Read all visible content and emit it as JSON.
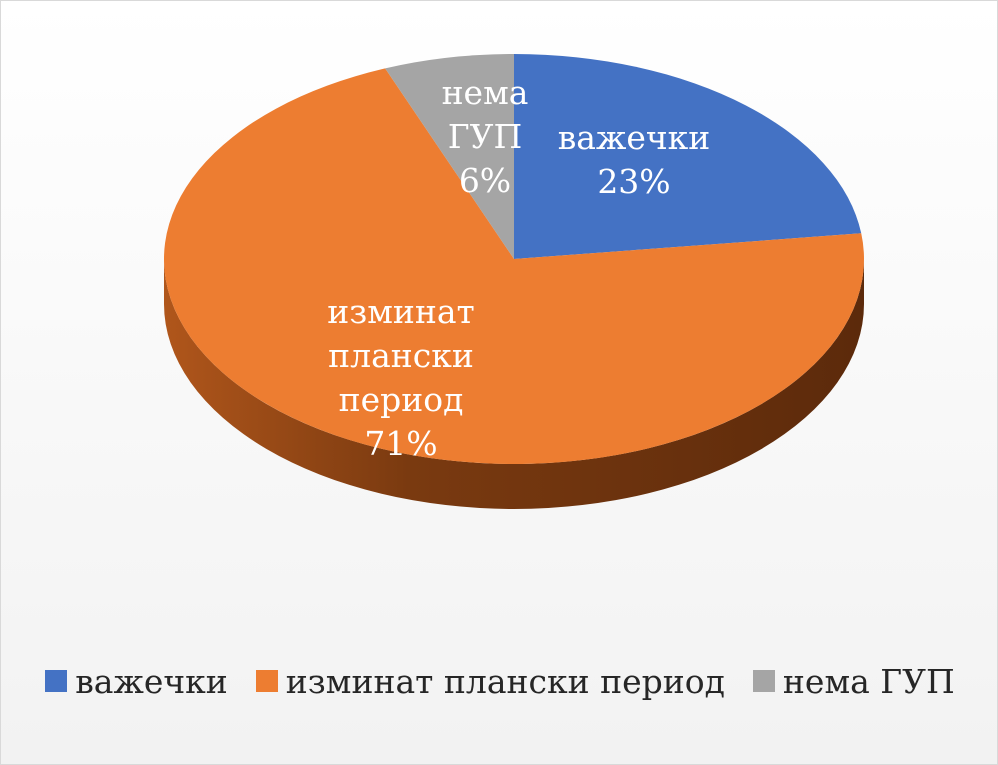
{
  "chart_data": {
    "type": "pie",
    "title": "",
    "categories": [
      "важечки",
      "изминат плански период",
      "нема ГУП"
    ],
    "values": [
      23,
      71,
      6
    ],
    "value_unit": "%",
    "colors": [
      "#4472c4",
      "#ed7d31",
      "#a5a5a5"
    ],
    "data_labels": [
      {
        "lines": [
          "важечки",
          "23%"
        ]
      },
      {
        "lines": [
          "изминат",
          "плански",
          "период",
          "71%"
        ]
      },
      {
        "lines": [
          "нема",
          "ГУП",
          "6%"
        ]
      }
    ],
    "legend": {
      "position": "bottom",
      "entries": [
        "важечки",
        "изминат плански период",
        "нема ГУП"
      ]
    },
    "style": "3d"
  }
}
